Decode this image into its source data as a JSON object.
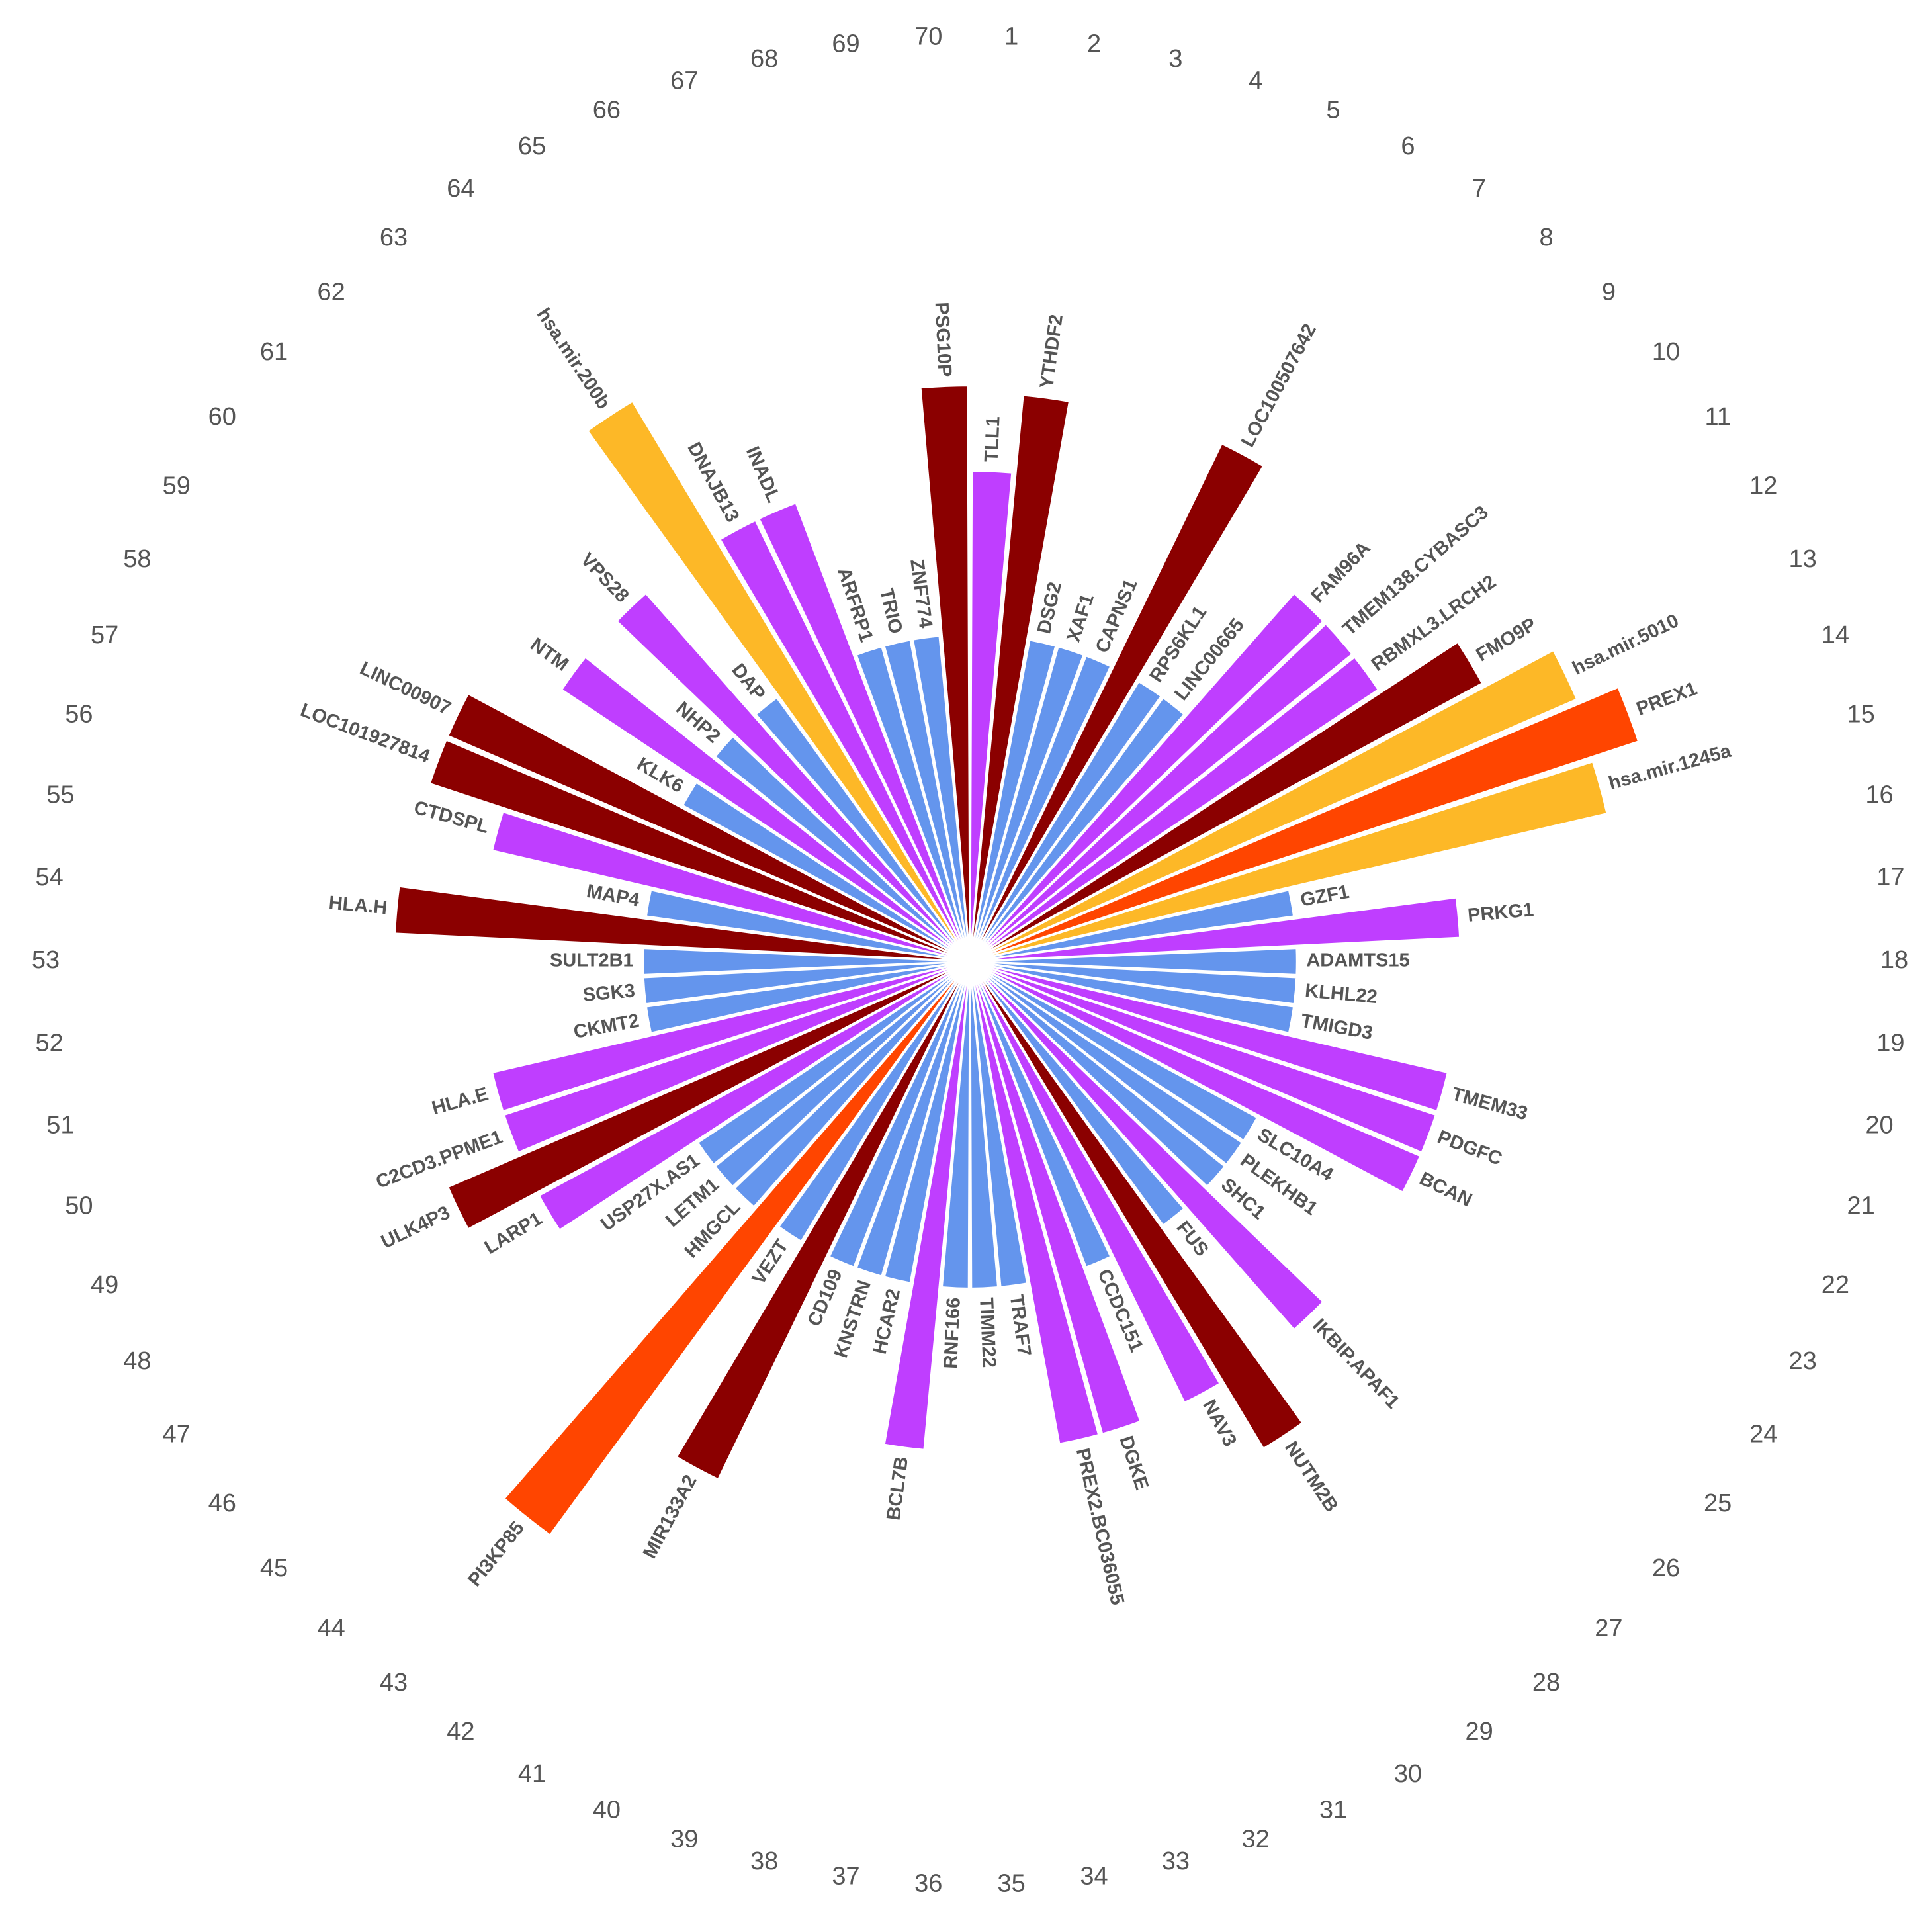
{
  "chart_data": {
    "type": "radial-bar",
    "rlim": [
      0,
      130
    ],
    "slot_labels": [
      1,
      2,
      3,
      4,
      5,
      6,
      7,
      8,
      9,
      10,
      11,
      12,
      13,
      14,
      15,
      16,
      17,
      18,
      19,
      20,
      21,
      22,
      23,
      24,
      25,
      26,
      27,
      28,
      29,
      30,
      31,
      32,
      33,
      34,
      35,
      36,
      37,
      38,
      39,
      40,
      41,
      42,
      43,
      44,
      45,
      46,
      47,
      48,
      49,
      50,
      51,
      52,
      53,
      54,
      55,
      56,
      57,
      58,
      59,
      60,
      61,
      62,
      63,
      64,
      65,
      66,
      67,
      68,
      69,
      70
    ],
    "categories": [
      "TLL1",
      "YTHDF2",
      "DSG2",
      "XAF1",
      "CAPNS1",
      "LOC100507642",
      "RPS6KL1",
      "LINC00665",
      "FAM96A",
      "TMEM138.CYBASC3",
      "RBMXL3.LRCH2",
      "FMO9P",
      "hsa.mir.5010",
      "PREX1",
      "hsa.mir.1245a",
      "GZF1",
      "PRKG1",
      "ADAMTS15",
      "KLHL22",
      "TMIGD3",
      "TMEM33",
      "PDGFC",
      "BCAN",
      "SLC10A4",
      "PLEKHB1",
      "SHC1",
      "IKBIP.APAF1",
      "FUS",
      "NUTM2B",
      "NAV3",
      "CCDC151",
      "DGKE",
      "PREX2.BC036055",
      "TRAF7",
      "TIMM22",
      "RNF166",
      "BCL7B",
      "HCAR2",
      "KNSTRN",
      "CD109",
      "MIR133A2",
      "VEZT",
      "PI3KP85",
      "HMGCL",
      "LETM1",
      "USP27X.AS1",
      "LARP1",
      "ULK4P3",
      "C2CD3.PPME1",
      "HLA.E",
      "CKMT2",
      "SGK3",
      "SULT2B1",
      "HLA.H",
      "MAP4",
      "CTDSPL",
      "LOC101927814",
      "LINC00907",
      "KLK6",
      "NTM",
      "NHP2",
      "VPS28",
      "DAP",
      "hsa.mir.200b",
      "DNAJB13",
      "INADL",
      "ARFRP1",
      "TRIO",
      "ZNF774",
      "PSG10P"
    ],
    "values": [
      69,
      80,
      46,
      46,
      46,
      81,
      46,
      46,
      69,
      69,
      69,
      82,
      93,
      99,
      92,
      46,
      69,
      46,
      46,
      46,
      69,
      69,
      69,
      46,
      46,
      46,
      69,
      46,
      80,
      69,
      46,
      69,
      69,
      46,
      46,
      46,
      69,
      46,
      46,
      46,
      81,
      46,
      100,
      46,
      46,
      46,
      69,
      80,
      69,
      69,
      46,
      46,
      46,
      81,
      46,
      69,
      80,
      80,
      46,
      69,
      46,
      69,
      46,
      92,
      69,
      69,
      46,
      46,
      46,
      81
    ],
    "colors": [
      "#bf3eff",
      "#8b0000",
      "#6495ed",
      "#6495ed",
      "#6495ed",
      "#8b0000",
      "#6495ed",
      "#6495ed",
      "#bf3eff",
      "#bf3eff",
      "#bf3eff",
      "#8b0000",
      "#fdb827",
      "#ff4500",
      "#fdb827",
      "#6495ed",
      "#bf3eff",
      "#6495ed",
      "#6495ed",
      "#6495ed",
      "#bf3eff",
      "#bf3eff",
      "#bf3eff",
      "#6495ed",
      "#6495ed",
      "#6495ed",
      "#bf3eff",
      "#6495ed",
      "#8b0000",
      "#bf3eff",
      "#6495ed",
      "#bf3eff",
      "#bf3eff",
      "#6495ed",
      "#6495ed",
      "#6495ed",
      "#bf3eff",
      "#6495ed",
      "#6495ed",
      "#6495ed",
      "#8b0000",
      "#6495ed",
      "#ff4500",
      "#6495ed",
      "#6495ed",
      "#6495ed",
      "#bf3eff",
      "#8b0000",
      "#bf3eff",
      "#bf3eff",
      "#6495ed",
      "#6495ed",
      "#6495ed",
      "#8b0000",
      "#6495ed",
      "#bf3eff",
      "#8b0000",
      "#8b0000",
      "#6495ed",
      "#bf3eff",
      "#6495ed",
      "#bf3eff",
      "#6495ed",
      "#fdb827",
      "#bf3eff",
      "#bf3eff",
      "#6495ed",
      "#6495ed",
      "#6495ed",
      "#8b0000"
    ]
  }
}
